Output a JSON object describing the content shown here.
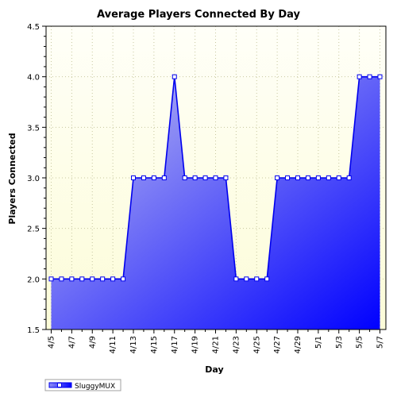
{
  "chart_data": {
    "type": "area",
    "title": "Average Players Connected By Day",
    "xlabel": "Day",
    "ylabel": "Players Connected",
    "ylim": [
      1.5,
      4.5
    ],
    "yticks": [
      "1.5",
      "2.0",
      "2.5",
      "3.0",
      "3.5",
      "4.0",
      "4.5"
    ],
    "categories": [
      "4/5",
      "4/6",
      "4/7",
      "4/8",
      "4/9",
      "4/10",
      "4/11",
      "4/12",
      "4/13",
      "4/14",
      "4/15",
      "4/16",
      "4/17",
      "4/18",
      "4/19",
      "4/20",
      "4/21",
      "4/22",
      "4/23",
      "4/24",
      "4/25",
      "4/26",
      "4/27",
      "4/28",
      "4/29",
      "4/30",
      "5/1",
      "5/2",
      "5/3",
      "5/4",
      "5/5",
      "5/6",
      "5/7"
    ],
    "xtick_labels": [
      "4/5",
      "4/7",
      "4/9",
      "4/11",
      "4/13",
      "4/15",
      "4/17",
      "4/19",
      "4/21",
      "4/23",
      "4/25",
      "4/27",
      "4/29",
      "5/1",
      "5/3",
      "5/5",
      "5/7"
    ],
    "series": [
      {
        "name": "SluggyMUX",
        "values": [
          2,
          2,
          2,
          2,
          2,
          2,
          2,
          2,
          3,
          3,
          3,
          3,
          4,
          3,
          3,
          3,
          3,
          3,
          2,
          2,
          2,
          2,
          3,
          3,
          3,
          3,
          3,
          3,
          3,
          3,
          4,
          4,
          4
        ]
      }
    ],
    "grid": true,
    "legend": "bottom-left",
    "colors": {
      "plot_bg_top": "#fffff8",
      "plot_bg_bottom": "#fcfcd8",
      "area_light": "#c4c4f0",
      "area_dark": "#0000ff",
      "line": "#0000ee",
      "marker_fill": "#ffffff",
      "grid": "#c8c8a0"
    }
  }
}
